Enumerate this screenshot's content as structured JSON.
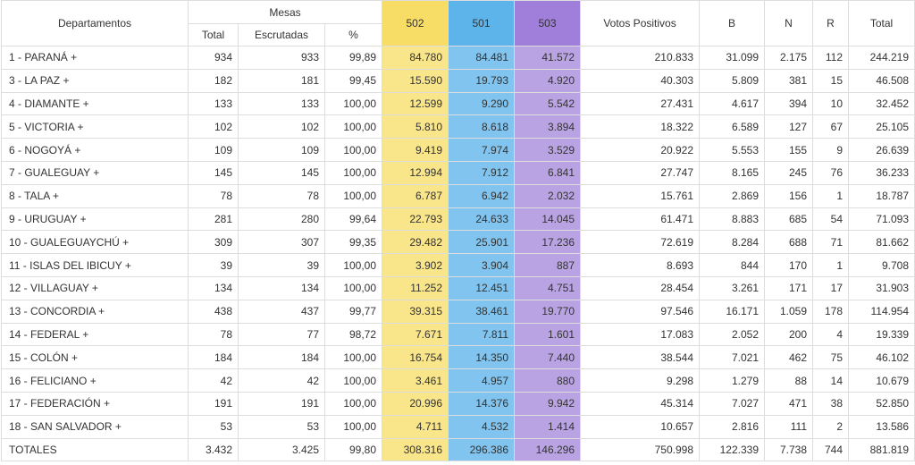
{
  "header": {
    "departamentos": "Departamentos",
    "mesas": "Mesas",
    "total": "Total",
    "escrutadas": "Escrutadas",
    "pct": "%",
    "l502": "502",
    "l501": "501",
    "l503": "503",
    "votos": "Votos Positivos",
    "b": "B",
    "n": "N",
    "r": "R",
    "total2": "Total"
  },
  "colors": {
    "col502": "#f7dc66",
    "col501": "#5db4ea",
    "col503": "#9f7fd9"
  },
  "rows": [
    {
      "dep": "1 - PARANÁ +",
      "total": "934",
      "escr": "933",
      "pct": "99,89",
      "v502": "84.780",
      "v501": "84.481",
      "v503": "41.572",
      "votos": "210.833",
      "b": "31.099",
      "n": "2.175",
      "r": "112",
      "tot": "244.219"
    },
    {
      "dep": "3 - LA PAZ +",
      "total": "182",
      "escr": "181",
      "pct": "99,45",
      "v502": "15.590",
      "v501": "19.793",
      "v503": "4.920",
      "votos": "40.303",
      "b": "5.809",
      "n": "381",
      "r": "15",
      "tot": "46.508"
    },
    {
      "dep": "4 - DIAMANTE +",
      "total": "133",
      "escr": "133",
      "pct": "100,00",
      "v502": "12.599",
      "v501": "9.290",
      "v503": "5.542",
      "votos": "27.431",
      "b": "4.617",
      "n": "394",
      "r": "10",
      "tot": "32.452"
    },
    {
      "dep": "5 - VICTORIA +",
      "total": "102",
      "escr": "102",
      "pct": "100,00",
      "v502": "5.810",
      "v501": "8.618",
      "v503": "3.894",
      "votos": "18.322",
      "b": "6.589",
      "n": "127",
      "r": "67",
      "tot": "25.105"
    },
    {
      "dep": "6 - NOGOYÁ +",
      "total": "109",
      "escr": "109",
      "pct": "100,00",
      "v502": "9.419",
      "v501": "7.974",
      "v503": "3.529",
      "votos": "20.922",
      "b": "5.553",
      "n": "155",
      "r": "9",
      "tot": "26.639"
    },
    {
      "dep": "7 - GUALEGUAY +",
      "total": "145",
      "escr": "145",
      "pct": "100,00",
      "v502": "12.994",
      "v501": "7.912",
      "v503": "6.841",
      "votos": "27.747",
      "b": "8.165",
      "n": "245",
      "r": "76",
      "tot": "36.233"
    },
    {
      "dep": "8 - TALA +",
      "total": "78",
      "escr": "78",
      "pct": "100,00",
      "v502": "6.787",
      "v501": "6.942",
      "v503": "2.032",
      "votos": "15.761",
      "b": "2.869",
      "n": "156",
      "r": "1",
      "tot": "18.787"
    },
    {
      "dep": "9 - URUGUAY +",
      "total": "281",
      "escr": "280",
      "pct": "99,64",
      "v502": "22.793",
      "v501": "24.633",
      "v503": "14.045",
      "votos": "61.471",
      "b": "8.883",
      "n": "685",
      "r": "54",
      "tot": "71.093"
    },
    {
      "dep": "10 - GUALEGUAYCHÚ +",
      "total": "309",
      "escr": "307",
      "pct": "99,35",
      "v502": "29.482",
      "v501": "25.901",
      "v503": "17.236",
      "votos": "72.619",
      "b": "8.284",
      "n": "688",
      "r": "71",
      "tot": "81.662"
    },
    {
      "dep": "11 - ISLAS DEL IBICUY +",
      "total": "39",
      "escr": "39",
      "pct": "100,00",
      "v502": "3.902",
      "v501": "3.904",
      "v503": "887",
      "votos": "8.693",
      "b": "844",
      "n": "170",
      "r": "1",
      "tot": "9.708"
    },
    {
      "dep": "12 - VILLAGUAY +",
      "total": "134",
      "escr": "134",
      "pct": "100,00",
      "v502": "11.252",
      "v501": "12.451",
      "v503": "4.751",
      "votos": "28.454",
      "b": "3.261",
      "n": "171",
      "r": "17",
      "tot": "31.903"
    },
    {
      "dep": "13 - CONCORDIA +",
      "total": "438",
      "escr": "437",
      "pct": "99,77",
      "v502": "39.315",
      "v501": "38.461",
      "v503": "19.770",
      "votos": "97.546",
      "b": "16.171",
      "n": "1.059",
      "r": "178",
      "tot": "114.954"
    },
    {
      "dep": "14 - FEDERAL +",
      "total": "78",
      "escr": "77",
      "pct": "98,72",
      "v502": "7.671",
      "v501": "7.811",
      "v503": "1.601",
      "votos": "17.083",
      "b": "2.052",
      "n": "200",
      "r": "4",
      "tot": "19.339"
    },
    {
      "dep": "15 - COLÓN +",
      "total": "184",
      "escr": "184",
      "pct": "100,00",
      "v502": "16.754",
      "v501": "14.350",
      "v503": "7.440",
      "votos": "38.544",
      "b": "7.021",
      "n": "462",
      "r": "75",
      "tot": "46.102"
    },
    {
      "dep": "16 - FELICIANO +",
      "total": "42",
      "escr": "42",
      "pct": "100,00",
      "v502": "3.461",
      "v501": "4.957",
      "v503": "880",
      "votos": "9.298",
      "b": "1.279",
      "n": "88",
      "r": "14",
      "tot": "10.679"
    },
    {
      "dep": "17 - FEDERACIÓN +",
      "total": "191",
      "escr": "191",
      "pct": "100,00",
      "v502": "20.996",
      "v501": "14.376",
      "v503": "9.942",
      "votos": "45.314",
      "b": "7.027",
      "n": "471",
      "r": "38",
      "tot": "52.850"
    },
    {
      "dep": "18 - SAN SALVADOR +",
      "total": "53",
      "escr": "53",
      "pct": "100,00",
      "v502": "4.711",
      "v501": "4.532",
      "v503": "1.414",
      "votos": "10.657",
      "b": "2.816",
      "n": "111",
      "r": "2",
      "tot": "13.586"
    }
  ],
  "totals": {
    "dep": "TOTALES",
    "total": "3.432",
    "escr": "3.425",
    "pct": "99,80",
    "v502": "308.316",
    "v501": "296.386",
    "v503": "146.296",
    "votos": "750.998",
    "b": "122.339",
    "n": "7.738",
    "r": "744",
    "tot": "881.819"
  }
}
